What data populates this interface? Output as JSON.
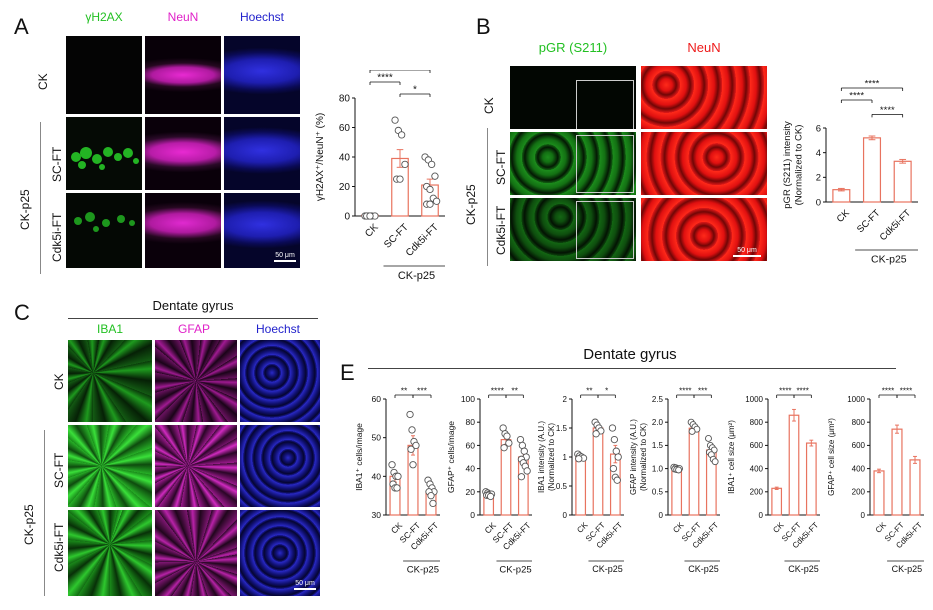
{
  "panels": {
    "A": {
      "letter": "A",
      "channels": [
        "γH2AX",
        "NeuN",
        "Hoechst"
      ],
      "rows": [
        "CK",
        "SC-FT",
        "Cdk5i-FT"
      ],
      "group": "CK-p25",
      "scalebar": "50 μm"
    },
    "B": {
      "letter": "B",
      "channels": [
        "pGR (S211)",
        "NeuN"
      ],
      "rows": [
        "CK",
        "SC-FT",
        "Cdk5i-FT"
      ],
      "group": "CK-p25",
      "scalebar": "50 μm"
    },
    "C": {
      "letter": "C",
      "title": "Dentate gyrus",
      "channels": [
        "IBA1",
        "GFAP",
        "Hoechst"
      ],
      "rows": [
        "CK",
        "SC-FT",
        "Cdk5i-FT"
      ],
      "group": "CK-p25",
      "scalebar": "50 μm"
    },
    "E": {
      "letter": "E",
      "title": "Dentate gyrus"
    }
  },
  "colors": {
    "green": "#22c022",
    "magenta": "#e020c8",
    "blue": "#2222cc",
    "red": "#ee1a1a",
    "bar": "#e8735f"
  },
  "chart_data": [
    {
      "id": "A-chart",
      "type": "bar",
      "categories": [
        "CK",
        "SC-FT",
        "Cdk5i-FT"
      ],
      "values": [
        0,
        39,
        21
      ],
      "errors": [
        0,
        6,
        4
      ],
      "points": [
        [
          0,
          0,
          0,
          0,
          0,
          0
        ],
        [
          65,
          58,
          55,
          35,
          25,
          25
        ],
        [
          40,
          38,
          35,
          27,
          20,
          18,
          12,
          10,
          8,
          8
        ]
      ],
      "ylabel": "γH2AX⁺/NeuN⁺ (%)",
      "ylim": [
        0,
        80
      ],
      "yticks": [
        0,
        20,
        40,
        60,
        80
      ],
      "group_label": "CK-p25",
      "significance": [
        {
          "from": 0,
          "to": 2,
          "label": "**"
        },
        {
          "from": 0,
          "to": 1,
          "label": "****"
        },
        {
          "from": 1,
          "to": 2,
          "label": "*"
        }
      ]
    },
    {
      "id": "B-chart",
      "type": "bar",
      "categories": [
        "CK",
        "SC-FT",
        "Cdk5i-FT"
      ],
      "values": [
        1.0,
        5.2,
        3.3
      ],
      "errors": [
        0.1,
        0.15,
        0.15
      ],
      "ylabel": "pGR (S211) intensity (Normalized to CK)",
      "ylim": [
        0,
        6
      ],
      "yticks": [
        0,
        2,
        4,
        6
      ],
      "group_label": "CK-p25",
      "significance": [
        {
          "from": 0,
          "to": 2,
          "label": "****"
        },
        {
          "from": 0,
          "to": 1,
          "label": "****"
        },
        {
          "from": 1,
          "to": 2,
          "label": "****"
        }
      ]
    },
    {
      "id": "E1",
      "type": "bar",
      "categories": [
        "CK",
        "SC-FT",
        "Cdk5i-FT"
      ],
      "values": [
        40,
        48,
        36
      ],
      "errors": [
        1.5,
        2.5,
        1.5
      ],
      "points": [
        [
          43,
          41,
          40,
          40,
          38,
          37,
          37
        ],
        [
          56,
          52,
          49,
          48,
          47,
          43
        ],
        [
          39,
          38,
          37,
          36,
          36,
          35,
          33
        ]
      ],
      "ylabel": "IBA1⁺ cells/image",
      "ylim": [
        30,
        60
      ],
      "yticks": [
        30,
        40,
        50,
        60
      ],
      "group_label": "CK-p25",
      "significance": [
        {
          "from": 0,
          "to": 1,
          "label": "**"
        },
        {
          "from": 1,
          "to": 2,
          "label": "***"
        }
      ]
    },
    {
      "id": "E2",
      "type": "bar",
      "categories": [
        "CK",
        "SC-FT",
        "Cdk5i-FT"
      ],
      "values": [
        18,
        65,
        50
      ],
      "errors": [
        1.5,
        4,
        5
      ],
      "points": [
        [
          20,
          19,
          18,
          18,
          17,
          17,
          16
        ],
        [
          75,
          70,
          68,
          62,
          58
        ],
        [
          65,
          60,
          55,
          50,
          48,
          45,
          42,
          38,
          33
        ]
      ],
      "ylabel": "GFAP⁺ cells/image",
      "ylim": [
        0,
        100
      ],
      "yticks": [
        0,
        20,
        40,
        60,
        80,
        100
      ],
      "group_label": "CK-p25",
      "significance": [
        {
          "from": 0,
          "to": 1,
          "label": "****"
        },
        {
          "from": 1,
          "to": 2,
          "label": "**"
        }
      ]
    },
    {
      "id": "E3",
      "type": "bar",
      "categories": [
        "CK",
        "SC-FT",
        "Cdk5i-FT"
      ],
      "values": [
        1.0,
        1.5,
        1.05
      ],
      "errors": [
        0.03,
        0.06,
        0.15
      ],
      "points": [
        [
          1.05,
          1.02,
          1.0,
          0.98,
          0.97
        ],
        [
          1.6,
          1.55,
          1.5,
          1.45,
          1.4
        ],
        [
          1.5,
          1.3,
          1.1,
          1.0,
          0.8,
          0.65,
          0.6
        ]
      ],
      "ylabel": "IBA1 intensity (A.U.) (Normalized to CK)",
      "ylim": [
        0,
        2.0
      ],
      "yticks": [
        0,
        0.5,
        1.0,
        1.5,
        2.0
      ],
      "ytick_labels": [
        "0",
        "0.5",
        "1",
        "1.5",
        "2"
      ],
      "group_label": "CK-p25",
      "significance": [
        {
          "from": 0,
          "to": 1,
          "label": "**"
        },
        {
          "from": 1,
          "to": 2,
          "label": "*"
        }
      ]
    },
    {
      "id": "E4",
      "type": "bar",
      "categories": [
        "CK",
        "SC-FT",
        "Cdk5i-FT"
      ],
      "values": [
        1.0,
        1.87,
        1.4
      ],
      "errors": [
        0.02,
        0.05,
        0.08
      ],
      "points": [
        [
          1.03,
          1.02,
          1.0,
          1.0,
          0.99,
          0.98,
          0.97
        ],
        [
          2.0,
          1.95,
          1.9,
          1.85,
          1.8
        ],
        [
          1.65,
          1.5,
          1.45,
          1.4,
          1.35,
          1.3,
          1.2,
          1.15
        ]
      ],
      "ylabel": "GFAP intensity (A.U.) (Normalized to CK)",
      "ylim": [
        0,
        2.5
      ],
      "yticks": [
        0,
        0.5,
        1.0,
        1.5,
        2.0,
        2.5
      ],
      "ytick_labels": [
        "0",
        "0.5",
        "1.0",
        "1.5",
        "2.0",
        "2.5"
      ],
      "group_label": "CK-p25",
      "significance": [
        {
          "from": 0,
          "to": 1,
          "label": "****"
        },
        {
          "from": 1,
          "to": 2,
          "label": "***"
        }
      ]
    },
    {
      "id": "E5",
      "type": "bar",
      "categories": [
        "CK",
        "SC-FT",
        "Cdk5i-FT"
      ],
      "values": [
        230,
        860,
        620
      ],
      "errors": [
        10,
        50,
        25
      ],
      "ylabel": "IBA1⁺ cell size (μm²)",
      "ylim": [
        0,
        1000
      ],
      "yticks": [
        0,
        200,
        400,
        600,
        800,
        1000
      ],
      "group_label": "CK-p25",
      "significance": [
        {
          "from": 0,
          "to": 1,
          "label": "****"
        },
        {
          "from": 1,
          "to": 2,
          "label": "****"
        }
      ]
    },
    {
      "id": "E6",
      "type": "bar",
      "categories": [
        "CK",
        "SC-FT",
        "Cdk5i-FT"
      ],
      "values": [
        380,
        740,
        475
      ],
      "errors": [
        15,
        35,
        30
      ],
      "ylabel": "GFAP⁺ cell size (μm²)",
      "ylim": [
        0,
        1000
      ],
      "yticks": [
        0,
        200,
        400,
        600,
        800,
        1000
      ],
      "group_label": "CK-p25",
      "significance": [
        {
          "from": 0,
          "to": 1,
          "label": "****"
        },
        {
          "from": 1,
          "to": 2,
          "label": "****"
        }
      ]
    }
  ]
}
